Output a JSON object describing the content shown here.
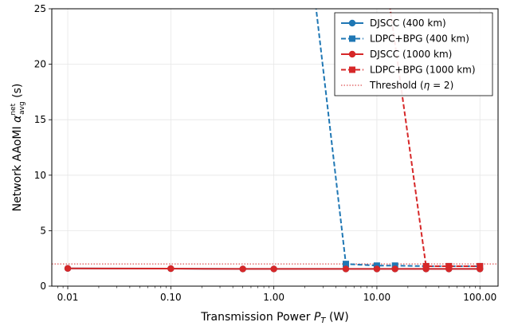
{
  "chart_data": {
    "type": "line",
    "xscale": "log",
    "xlabel": "Transmission Power P_T (W)",
    "ylabel": "Network AAoMI α_avg^net (s)",
    "xlim": [
      0.007,
      150
    ],
    "ylim": [
      0,
      25
    ],
    "xticks": [
      0.01,
      0.1,
      1,
      10,
      100
    ],
    "xtick_labels": [
      "0.01",
      "0.10",
      "1.00",
      "10.00",
      "100.00"
    ],
    "yticks": [
      0,
      5,
      10,
      15,
      20,
      25
    ],
    "ytick_labels": [
      "0",
      "5",
      "10",
      "15",
      "20",
      "25"
    ],
    "grid": true,
    "legend_position": "top-right",
    "series": [
      {
        "name": "DJSCC (400 km)",
        "color": "#1f77b4",
        "linestyle": "solid",
        "marker": "circle",
        "x": [
          0.01,
          0.1,
          0.5,
          1,
          5,
          10,
          15,
          30,
          50,
          100
        ],
        "y": [
          1.6,
          1.58,
          1.55,
          1.55,
          1.55,
          1.55,
          1.55,
          1.55,
          1.55,
          1.55
        ]
      },
      {
        "name": "LDPC+BPG (400 km)",
        "color": "#1f77b4",
        "linestyle": "dashed",
        "marker": "square",
        "x": [
          2.5,
          5,
          10,
          15,
          30,
          50,
          100
        ],
        "y": [
          26,
          2.0,
          1.85,
          1.85,
          1.8,
          1.8,
          1.8
        ]
      },
      {
        "name": "DJSCC (1000 km)",
        "color": "#d62728",
        "linestyle": "solid",
        "marker": "circle",
        "x": [
          0.01,
          0.1,
          0.5,
          1,
          5,
          10,
          15,
          30,
          50,
          100
        ],
        "y": [
          1.6,
          1.58,
          1.55,
          1.55,
          1.55,
          1.55,
          1.55,
          1.55,
          1.55,
          1.55
        ]
      },
      {
        "name": "LDPC+BPG (1000 km)",
        "color": "#d62728",
        "linestyle": "dashed",
        "marker": "square",
        "x": [
          13,
          30,
          50,
          100
        ],
        "y": [
          26,
          1.8,
          1.8,
          1.8
        ]
      }
    ],
    "threshold": {
      "name": "Threshold (η = 2)",
      "value": 2,
      "color": "#d62728",
      "linestyle": "dotted"
    }
  }
}
